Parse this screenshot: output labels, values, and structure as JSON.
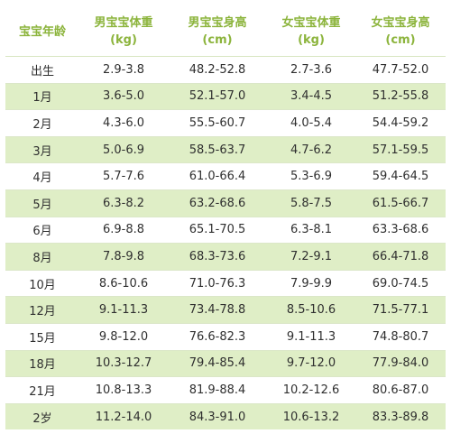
{
  "table": {
    "headers": [
      {
        "line1": "宝宝年龄",
        "line2": ""
      },
      {
        "line1": "男宝宝体重",
        "line2": "(kg)"
      },
      {
        "line1": "男宝宝身高",
        "line2": "(cm)"
      },
      {
        "line1": "女宝宝体重",
        "line2": "(kg)"
      },
      {
        "line1": "女宝宝身高",
        "line2": "(cm)"
      }
    ],
    "rows": [
      [
        "出生",
        "2.9-3.8",
        "48.2-52.8",
        "2.7-3.6",
        "47.7-52.0"
      ],
      [
        "1月",
        "3.6-5.0",
        "52.1-57.0",
        "3.4-4.5",
        "51.2-55.8"
      ],
      [
        "2月",
        "4.3-6.0",
        "55.5-60.7",
        "4.0-5.4",
        "54.4-59.2"
      ],
      [
        "3月",
        "5.0-6.9",
        "58.5-63.7",
        "4.7-6.2",
        "57.1-59.5"
      ],
      [
        "4月",
        "5.7-7.6",
        "61.0-66.4",
        "5.3-6.9",
        "59.4-64.5"
      ],
      [
        "5月",
        "6.3-8.2",
        "63.2-68.6",
        "5.8-7.5",
        "61.5-66.7"
      ],
      [
        "6月",
        "6.9-8.8",
        "65.1-70.5",
        "6.3-8.1",
        "63.3-68.6"
      ],
      [
        "8月",
        "7.8-9.8",
        "68.3-73.6",
        "7.2-9.1",
        "66.4-71.8"
      ],
      [
        "10月",
        "8.6-10.6",
        "71.0-76.3",
        "7.9-9.9",
        "69.0-74.5"
      ],
      [
        "12月",
        "9.1-11.3",
        "73.4-78.8",
        "8.5-10.6",
        "71.5-77.1"
      ],
      [
        "15月",
        "9.8-12.0",
        "76.6-82.3",
        "9.1-11.3",
        "74.8-80.7"
      ],
      [
        "18月",
        "10.3-12.7",
        "79.4-85.4",
        "9.7-12.0",
        "77.9-84.0"
      ],
      [
        "21月",
        "10.8-13.3",
        "81.9-88.4",
        "10.2-12.6",
        "80.6-87.0"
      ],
      [
        "2岁",
        "11.2-14.0",
        "84.3-91.0",
        "10.6-13.2",
        "83.3-89.8"
      ]
    ]
  },
  "colors": {
    "header_text": "#8cb43c",
    "stripe_fill": "#dfeec6",
    "body_text": "#2f2f2f"
  }
}
